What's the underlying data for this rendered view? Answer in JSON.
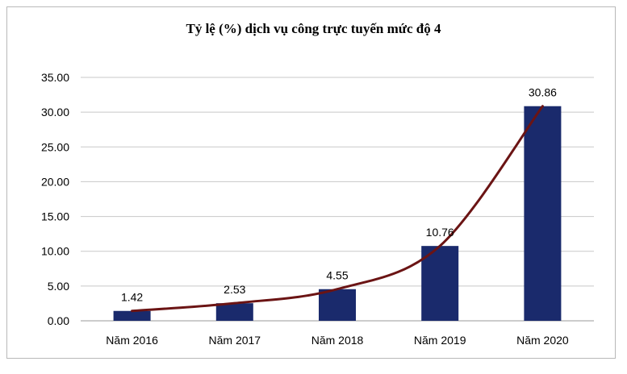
{
  "chart_data": {
    "type": "bar",
    "title": "Tỷ lệ (%) dịch vụ công trực tuyến mức độ 4",
    "categories": [
      "Năm 2016",
      "Năm 2017",
      "Năm 2018",
      "Năm 2019",
      "Năm 2020"
    ],
    "values": [
      1.42,
      2.53,
      4.55,
      10.76,
      30.86
    ],
    "value_labels": [
      "1.42",
      "2.53",
      "4.55",
      "10.76",
      "30.86"
    ],
    "overlay_line": true,
    "ylim": [
      0,
      35
    ],
    "yticks": [
      "0.00",
      "5.00",
      "10.00",
      "15.00",
      "20.00",
      "25.00",
      "30.00",
      "35.00"
    ],
    "grid": true,
    "xlabel": "",
    "ylabel": "",
    "bar_color": "#1a2a6c",
    "line_color": "#6b1414",
    "grid_color": "#c8c8c8"
  }
}
